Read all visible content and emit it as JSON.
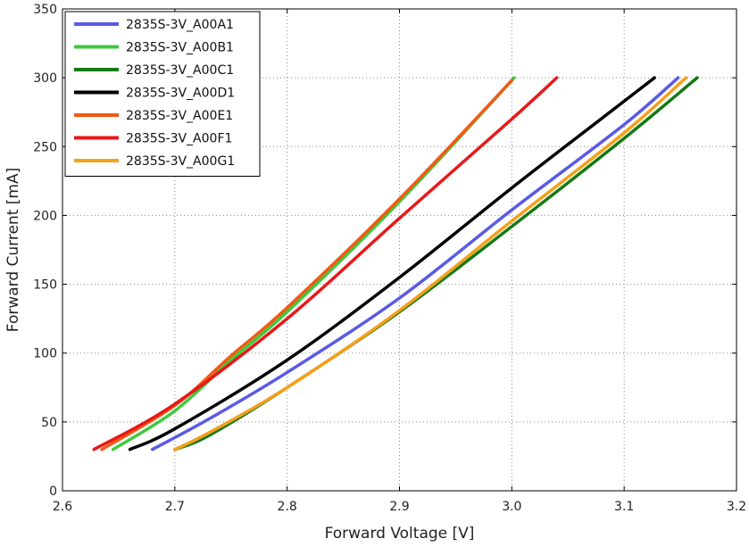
{
  "chart_data": {
    "type": "line",
    "xlabel": "Forward Voltage [V]",
    "ylabel": "Forward Current [mA]",
    "xlim": [
      2.6,
      3.2
    ],
    "ylim": [
      0,
      350
    ],
    "xticks": [
      "2.6",
      "2.7",
      "2.8",
      "2.9",
      "3.0",
      "3.1",
      "3.2"
    ],
    "yticks": [
      "0",
      "50",
      "100",
      "150",
      "200",
      "250",
      "300",
      "350"
    ],
    "grid": true,
    "legend_position": "top-left",
    "series": [
      {
        "name": "2835S-3V_A00A1",
        "color": "#5a5ae6",
        "points": [
          [
            2.68,
            30
          ],
          [
            2.73,
            52
          ],
          [
            2.8,
            86
          ],
          [
            2.9,
            140
          ],
          [
            3.0,
            204
          ],
          [
            3.1,
            266
          ],
          [
            3.148,
            300
          ]
        ]
      },
      {
        "name": "2835S-3V_A00B1",
        "color": "#3ec93e",
        "points": [
          [
            2.645,
            30
          ],
          [
            2.7,
            58
          ],
          [
            2.75,
            95
          ],
          [
            2.8,
            130
          ],
          [
            2.9,
            210
          ],
          [
            3.002,
            300
          ]
        ]
      },
      {
        "name": "2835S-3V_A00C1",
        "color": "#137a13",
        "points": [
          [
            2.7,
            30
          ],
          [
            2.73,
            40
          ],
          [
            2.8,
            75
          ],
          [
            2.9,
            130
          ],
          [
            3.0,
            192
          ],
          [
            3.1,
            256
          ],
          [
            3.165,
            300
          ]
        ]
      },
      {
        "name": "2835S-3V_A00D1",
        "color": "#000000",
        "points": [
          [
            2.66,
            30
          ],
          [
            2.7,
            45
          ],
          [
            2.8,
            95
          ],
          [
            2.9,
            155
          ],
          [
            3.0,
            220
          ],
          [
            3.1,
            283
          ],
          [
            3.127,
            300
          ]
        ]
      },
      {
        "name": "2835S-3V_A00E1",
        "color": "#f25a14",
        "points": [
          [
            2.635,
            30
          ],
          [
            2.7,
            62
          ],
          [
            2.75,
            98
          ],
          [
            2.8,
            133
          ],
          [
            2.9,
            212
          ],
          [
            3.0,
            298
          ]
        ]
      },
      {
        "name": "2835S-3V_A00F1",
        "color": "#e81919",
        "points": [
          [
            2.628,
            30
          ],
          [
            2.7,
            63
          ],
          [
            2.8,
            125
          ],
          [
            2.9,
            198
          ],
          [
            3.0,
            270
          ],
          [
            3.04,
            300
          ]
        ]
      },
      {
        "name": "2835S-3V_A00G1",
        "color": "#f5a01a",
        "points": [
          [
            2.7,
            30
          ],
          [
            2.73,
            42
          ],
          [
            2.8,
            75
          ],
          [
            2.9,
            131
          ],
          [
            3.0,
            196
          ],
          [
            3.1,
            260
          ],
          [
            3.155,
            300
          ]
        ]
      }
    ]
  }
}
